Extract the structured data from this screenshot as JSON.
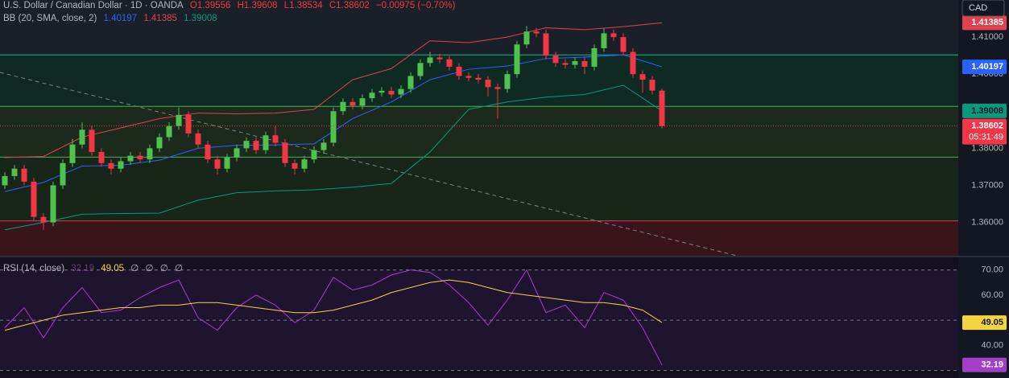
{
  "header": {
    "symbol": "U.S. Dollar / Canadian Dollar · 1D · OANDA",
    "open": "O1.39556",
    "high": "H1.39608",
    "low": "L1.38534",
    "close": "C1.38602",
    "change": "−0.00975 (−0.70%)"
  },
  "chart_data": [
    {
      "type": "candlestick",
      "indicator_label": "BB (20, SMA, close, 2)",
      "currency": "CAD",
      "last_price_label": "1.38602",
      "countdown": "05:31:49",
      "up_color": "#4fc14f",
      "down_color": "#f23645",
      "ylim": [
        1.351,
        1.42
      ],
      "yticks": [
        {
          "value": 1.41,
          "label": "1.41000"
        },
        {
          "value": 1.4,
          "label": "1.40000"
        },
        {
          "value": 1.38,
          "label": "1.38000"
        },
        {
          "value": 1.37,
          "label": "1.37000"
        },
        {
          "value": 1.36,
          "label": "1.36000"
        }
      ],
      "open": [
        1.37,
        1.3725,
        1.3745,
        1.371,
        1.3615,
        1.36,
        1.37,
        1.376,
        1.381,
        1.385,
        1.379,
        1.376,
        1.3745,
        1.3765,
        1.378,
        1.377,
        1.38,
        1.383,
        1.386,
        1.389,
        1.384,
        1.381,
        1.377,
        1.3745,
        1.3775,
        1.38,
        1.382,
        1.3795,
        1.3835,
        1.3815,
        1.376,
        1.3745,
        1.377,
        1.3795,
        1.3815,
        1.39,
        1.3925,
        1.3915,
        1.3935,
        1.395,
        1.3955,
        1.3945,
        1.396,
        1.3995,
        1.403,
        1.4045,
        1.404,
        1.402,
        1.3995,
        1.399,
        1.3985,
        1.3965,
        1.396,
        1.4,
        1.408,
        1.4115,
        1.411,
        1.405,
        1.403,
        1.4025,
        1.4035,
        1.402,
        1.407,
        1.411,
        1.41,
        1.406,
        1.4,
        1.3985,
        1.39556
      ],
      "high": [
        1.3735,
        1.3755,
        1.3755,
        1.372,
        1.3625,
        1.371,
        1.377,
        1.3825,
        1.387,
        1.386,
        1.38,
        1.377,
        1.3775,
        1.379,
        1.379,
        1.381,
        1.384,
        1.387,
        1.391,
        1.39,
        1.385,
        1.382,
        1.378,
        1.3785,
        1.381,
        1.383,
        1.383,
        1.3845,
        1.386,
        1.3825,
        1.377,
        1.378,
        1.3805,
        1.3825,
        1.391,
        1.3935,
        1.3935,
        1.3945,
        1.396,
        1.3965,
        1.3965,
        1.397,
        1.4005,
        1.404,
        1.406,
        1.4055,
        1.405,
        1.403,
        1.4005,
        1.4,
        1.3995,
        1.3975,
        1.401,
        1.409,
        1.413,
        1.4125,
        1.412,
        1.406,
        1.404,
        1.4045,
        1.4045,
        1.408,
        1.4125,
        1.412,
        1.411,
        1.407,
        1.401,
        1.3995,
        1.39608
      ],
      "low": [
        1.369,
        1.3715,
        1.37,
        1.3605,
        1.358,
        1.359,
        1.369,
        1.375,
        1.38,
        1.378,
        1.375,
        1.373,
        1.3735,
        1.3755,
        1.376,
        1.376,
        1.379,
        1.382,
        1.385,
        1.383,
        1.38,
        1.376,
        1.373,
        1.3735,
        1.3765,
        1.379,
        1.3785,
        1.3785,
        1.3805,
        1.375,
        1.373,
        1.3735,
        1.376,
        1.3785,
        1.3805,
        1.389,
        1.3905,
        1.3905,
        1.3925,
        1.394,
        1.3935,
        1.3935,
        1.395,
        1.3985,
        1.402,
        1.403,
        1.401,
        1.3985,
        1.398,
        1.3975,
        1.394,
        1.388,
        1.395,
        1.399,
        1.407,
        1.41,
        1.404,
        1.402,
        1.4015,
        1.4015,
        1.4,
        1.401,
        1.406,
        1.409,
        1.405,
        1.399,
        1.395,
        1.3945,
        1.38534
      ],
      "close": [
        1.3725,
        1.3745,
        1.371,
        1.3615,
        1.36,
        1.37,
        1.376,
        1.381,
        1.385,
        1.379,
        1.376,
        1.3745,
        1.3765,
        1.378,
        1.377,
        1.38,
        1.383,
        1.386,
        1.389,
        1.384,
        1.381,
        1.377,
        1.3745,
        1.3775,
        1.38,
        1.382,
        1.3795,
        1.3835,
        1.3815,
        1.376,
        1.3745,
        1.377,
        1.3795,
        1.3815,
        1.39,
        1.3925,
        1.3915,
        1.3935,
        1.395,
        1.3955,
        1.3945,
        1.396,
        1.3995,
        1.403,
        1.4045,
        1.404,
        1.402,
        1.3995,
        1.399,
        1.3985,
        1.3965,
        1.396,
        1.4,
        1.408,
        1.4115,
        1.411,
        1.405,
        1.403,
        1.4025,
        1.4035,
        1.402,
        1.407,
        1.411,
        1.41,
        1.406,
        1.4,
        1.3985,
        1.39556,
        1.38602
      ],
      "series": [
        {
          "color": "#2962ff",
          "last_label": "1.40197",
          "x": [
            0,
            4,
            8,
            12,
            16,
            20,
            24,
            28,
            32,
            36,
            40,
            44,
            48,
            52,
            56,
            60,
            64,
            68
          ],
          "values": [
            1.3683,
            1.3708,
            1.3752,
            1.3754,
            1.3768,
            1.38,
            1.3808,
            1.3809,
            1.3812,
            1.388,
            1.3925,
            1.3985,
            1.4013,
            1.4022,
            1.4042,
            1.4046,
            1.4052,
            1.40197
          ]
        },
        {
          "color": "#e0424f",
          "last_label": "1.41385",
          "x": [
            0,
            4,
            8,
            12,
            16,
            20,
            24,
            28,
            32,
            36,
            40,
            44,
            48,
            52,
            56,
            60,
            64,
            68
          ],
          "values": [
            1.3775,
            1.3778,
            1.383,
            1.3855,
            1.388,
            1.3895,
            1.3893,
            1.3895,
            1.3905,
            1.3985,
            1.4015,
            1.409,
            1.4085,
            1.41,
            1.4125,
            1.412,
            1.4128,
            1.41385
          ]
        },
        {
          "color": "#089981",
          "last_label": "1.39008",
          "x": [
            0,
            4,
            8,
            12,
            16,
            20,
            24,
            28,
            32,
            36,
            40,
            44,
            48,
            52,
            56,
            60,
            64,
            68
          ],
          "values": [
            1.358,
            1.36,
            1.3622,
            1.3624,
            1.3625,
            1.366,
            1.368,
            1.3685,
            1.3688,
            1.3695,
            1.3705,
            1.379,
            1.3905,
            1.3925,
            1.3938,
            1.3945,
            1.397,
            1.39008
          ]
        }
      ],
      "levels": [
        {
          "value": 1.4052,
          "color": "#26a69a"
        },
        {
          "value": 1.3913,
          "color": "#4caf50"
        },
        {
          "value": 1.3776,
          "color": "#4caf50"
        },
        {
          "value": 1.3604,
          "color": "#d0404c"
        }
      ]
    },
    {
      "type": "line",
      "indicator_label": "RSI (14, close)",
      "na_labels": [
        "∅",
        "∅",
        "∅",
        "∅"
      ],
      "ylim": [
        27,
        75
      ],
      "yticks": [
        {
          "value": 70,
          "label": "70.00"
        },
        {
          "value": 60,
          "label": "60.00"
        },
        {
          "value": 40,
          "label": "40.00"
        }
      ],
      "bands": [
        70,
        50,
        30
      ],
      "series": [
        {
          "color": "#a23fc7",
          "last_label": "32.19",
          "x": [
            0,
            2,
            4,
            6,
            8,
            10,
            12,
            14,
            16,
            18,
            20,
            22,
            24,
            26,
            28,
            30,
            32,
            34,
            36,
            38,
            40,
            42,
            44,
            46,
            48,
            50,
            52,
            54,
            56,
            58,
            60,
            62,
            64,
            66,
            68
          ],
          "values": [
            47,
            55,
            43,
            55,
            63,
            53,
            54,
            59,
            63,
            66,
            51,
            46,
            55,
            60,
            56,
            49,
            54,
            67,
            62,
            64,
            68,
            70,
            69,
            64,
            57,
            48,
            58,
            70,
            53,
            56,
            47,
            61,
            58,
            47,
            32.19
          ]
        },
        {
          "color": "#f5d442",
          "last_label": "49.05",
          "x": [
            0,
            2,
            4,
            6,
            8,
            10,
            12,
            14,
            16,
            18,
            20,
            22,
            24,
            26,
            28,
            30,
            32,
            34,
            36,
            38,
            40,
            42,
            44,
            46,
            48,
            50,
            52,
            54,
            56,
            58,
            60,
            62,
            64,
            66,
            68
          ],
          "values": [
            46,
            48,
            50,
            52,
            53,
            54,
            55,
            55,
            56,
            56,
            57,
            57,
            56,
            55,
            54,
            53,
            53,
            54,
            56,
            58,
            61,
            63,
            65,
            66,
            65,
            63,
            61,
            60,
            59,
            58,
            57,
            57,
            56,
            54,
            49.05
          ]
        }
      ]
    }
  ]
}
